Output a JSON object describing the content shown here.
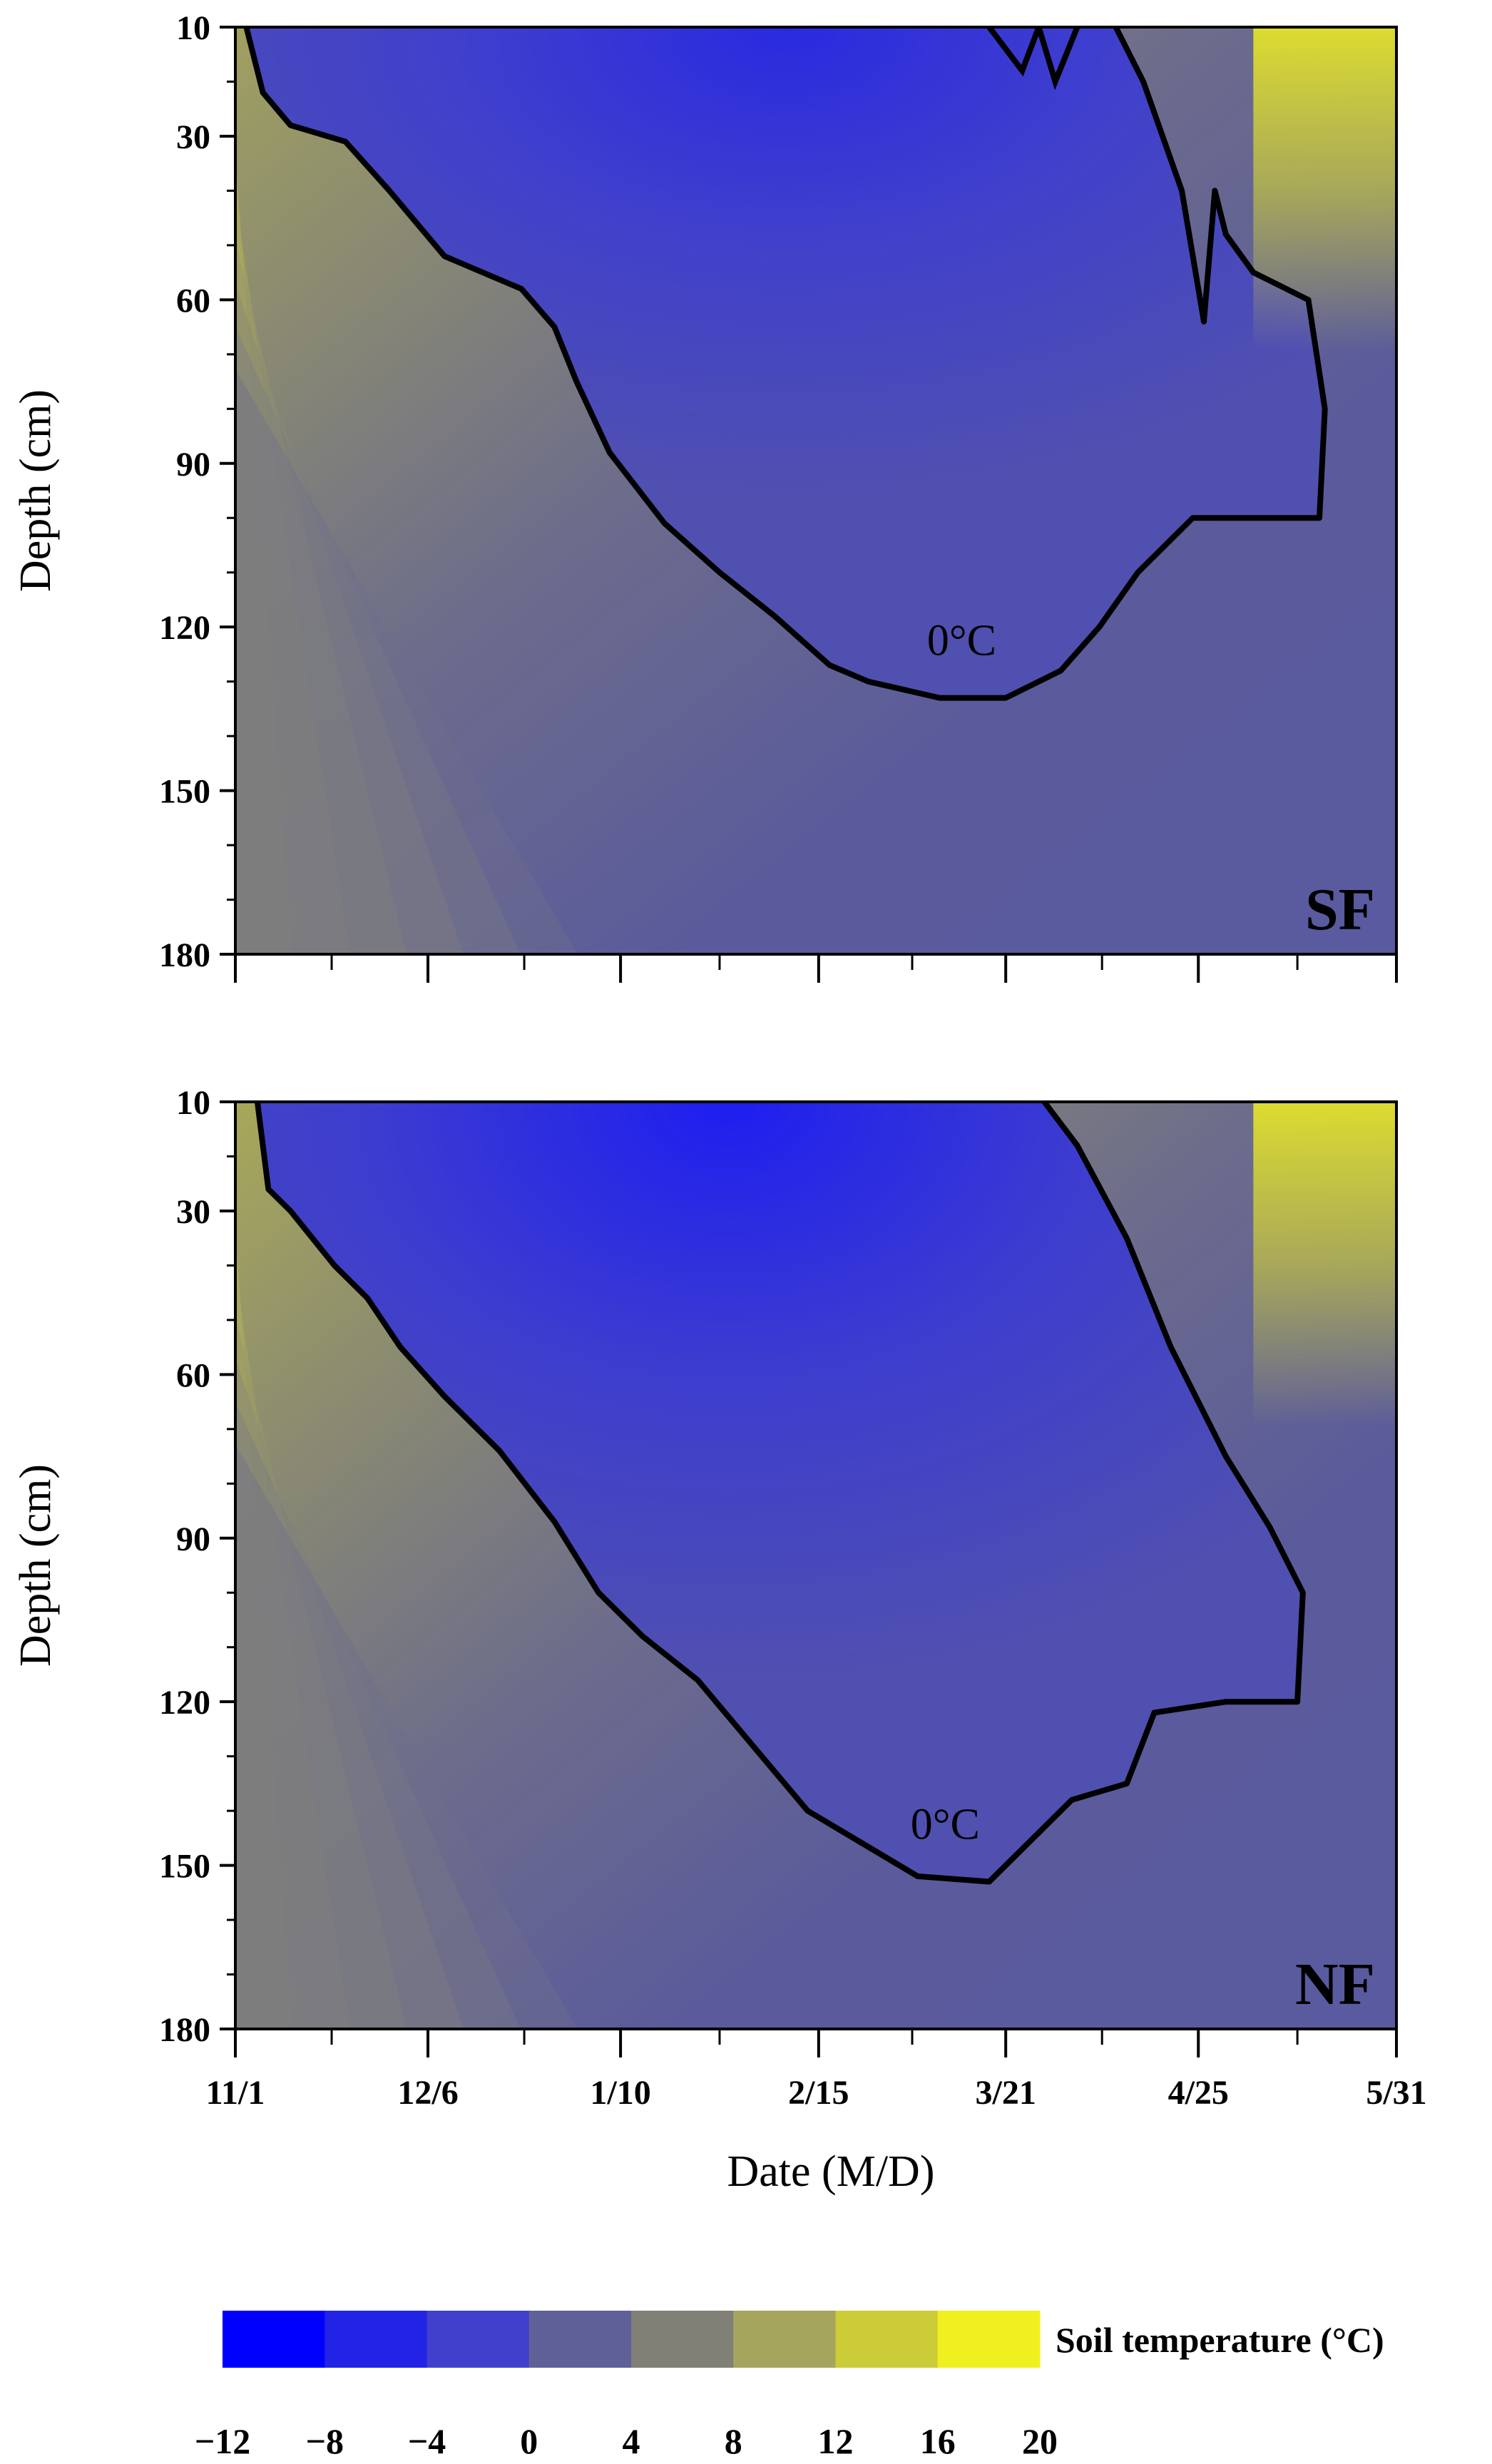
{
  "chart_data": [
    {
      "type": "heatmap",
      "panel_label": "SF",
      "ylabel": "Depth (cm)",
      "xlabel": "",
      "y_ticks": [
        "10",
        "30",
        "60",
        "90",
        "120",
        "150",
        "180"
      ],
      "y_values": [
        10,
        30,
        60,
        90,
        120,
        150,
        180
      ],
      "ylim": [
        10,
        180
      ],
      "y_inverted": true,
      "x_ticks": [
        "11/1",
        "12/6",
        "1/10",
        "2/15",
        "3/21",
        "4/25",
        "5/31"
      ],
      "x_days": [
        0,
        35,
        70,
        106,
        140,
        175,
        211
      ],
      "xlim_days": [
        0,
        211
      ],
      "contour_level_label": "0°C",
      "contour_level": 0,
      "freezing_front": [
        {
          "day": 2,
          "depth": 10
        },
        {
          "day": 5,
          "depth": 22
        },
        {
          "day": 10,
          "depth": 28
        },
        {
          "day": 20,
          "depth": 31
        },
        {
          "day": 28,
          "depth": 40
        },
        {
          "day": 38,
          "depth": 52
        },
        {
          "day": 52,
          "depth": 58
        },
        {
          "day": 58,
          "depth": 65
        },
        {
          "day": 62,
          "depth": 75
        },
        {
          "day": 68,
          "depth": 88
        },
        {
          "day": 78,
          "depth": 101
        },
        {
          "day": 88,
          "depth": 110
        },
        {
          "day": 98,
          "depth": 118
        },
        {
          "day": 108,
          "depth": 127
        },
        {
          "day": 115,
          "depth": 130
        },
        {
          "day": 128,
          "depth": 133
        },
        {
          "day": 140,
          "depth": 133
        }
      ],
      "thawing_front": [
        {
          "day": 140,
          "depth": 133
        },
        {
          "day": 150,
          "depth": 128
        },
        {
          "day": 157,
          "depth": 120
        },
        {
          "day": 164,
          "depth": 110
        },
        {
          "day": 174,
          "depth": 100
        },
        {
          "day": 197,
          "depth": 100
        },
        {
          "day": 198,
          "depth": 80
        },
        {
          "day": 195,
          "depth": 60
        },
        {
          "day": 185,
          "depth": 55
        },
        {
          "day": 180,
          "depth": 48
        },
        {
          "day": 178,
          "depth": 40
        },
        {
          "day": 176,
          "depth": 64
        },
        {
          "day": 172,
          "depth": 40
        },
        {
          "day": 165,
          "depth": 20
        },
        {
          "day": 160,
          "depth": 10
        }
      ],
      "thawing_front_top": [
        {
          "day": 137,
          "depth": 10
        },
        {
          "day": 143,
          "depth": 18
        },
        {
          "day": 146,
          "depth": 10
        },
        {
          "day": 149,
          "depth": 20
        },
        {
          "day": 153,
          "depth": 10
        }
      ]
    },
    {
      "type": "heatmap",
      "panel_label": "NF",
      "ylabel": "Depth (cm)",
      "xlabel": "Date (M/D)",
      "y_ticks": [
        "10",
        "30",
        "60",
        "90",
        "120",
        "150",
        "180"
      ],
      "y_values": [
        10,
        30,
        60,
        90,
        120,
        150,
        180
      ],
      "ylim": [
        10,
        180
      ],
      "y_inverted": true,
      "x_ticks": [
        "11/1",
        "12/6",
        "1/10",
        "2/15",
        "3/21",
        "4/25",
        "5/31"
      ],
      "x_days": [
        0,
        35,
        70,
        106,
        140,
        175,
        211
      ],
      "xlim_days": [
        0,
        211
      ],
      "contour_level_label": "0°C",
      "contour_level": 0,
      "freezing_front": [
        {
          "day": 4,
          "depth": 10
        },
        {
          "day": 6,
          "depth": 26
        },
        {
          "day": 10,
          "depth": 30
        },
        {
          "day": 18,
          "depth": 40
        },
        {
          "day": 24,
          "depth": 46
        },
        {
          "day": 30,
          "depth": 55
        },
        {
          "day": 38,
          "depth": 64
        },
        {
          "day": 48,
          "depth": 74
        },
        {
          "day": 58,
          "depth": 87
        },
        {
          "day": 66,
          "depth": 100
        },
        {
          "day": 74,
          "depth": 108
        },
        {
          "day": 84,
          "depth": 116
        },
        {
          "day": 94,
          "depth": 128
        },
        {
          "day": 104,
          "depth": 140
        },
        {
          "day": 114,
          "depth": 146
        },
        {
          "day": 124,
          "depth": 152
        },
        {
          "day": 137,
          "depth": 153
        }
      ],
      "thawing_front": [
        {
          "day": 137,
          "depth": 153
        },
        {
          "day": 144,
          "depth": 146
        },
        {
          "day": 152,
          "depth": 138
        },
        {
          "day": 162,
          "depth": 135
        },
        {
          "day": 167,
          "depth": 122
        },
        {
          "day": 180,
          "depth": 120
        },
        {
          "day": 193,
          "depth": 120
        },
        {
          "day": 194,
          "depth": 100
        },
        {
          "day": 188,
          "depth": 88
        },
        {
          "day": 180,
          "depth": 75
        },
        {
          "day": 170,
          "depth": 55
        },
        {
          "day": 162,
          "depth": 35
        },
        {
          "day": 153,
          "depth": 18
        },
        {
          "day": 147,
          "depth": 10
        }
      ]
    }
  ],
  "colorbar": {
    "title": "Soil temperature (°C)",
    "boundaries": [
      "−12",
      "−8",
      "−4",
      "0",
      "4",
      "8",
      "12",
      "16",
      "20"
    ],
    "colors": [
      "#0000ff",
      "#2323e6",
      "#4040cc",
      "#606099",
      "#808076",
      "#a5a55e",
      "#cccc38",
      "#f0f020"
    ]
  }
}
